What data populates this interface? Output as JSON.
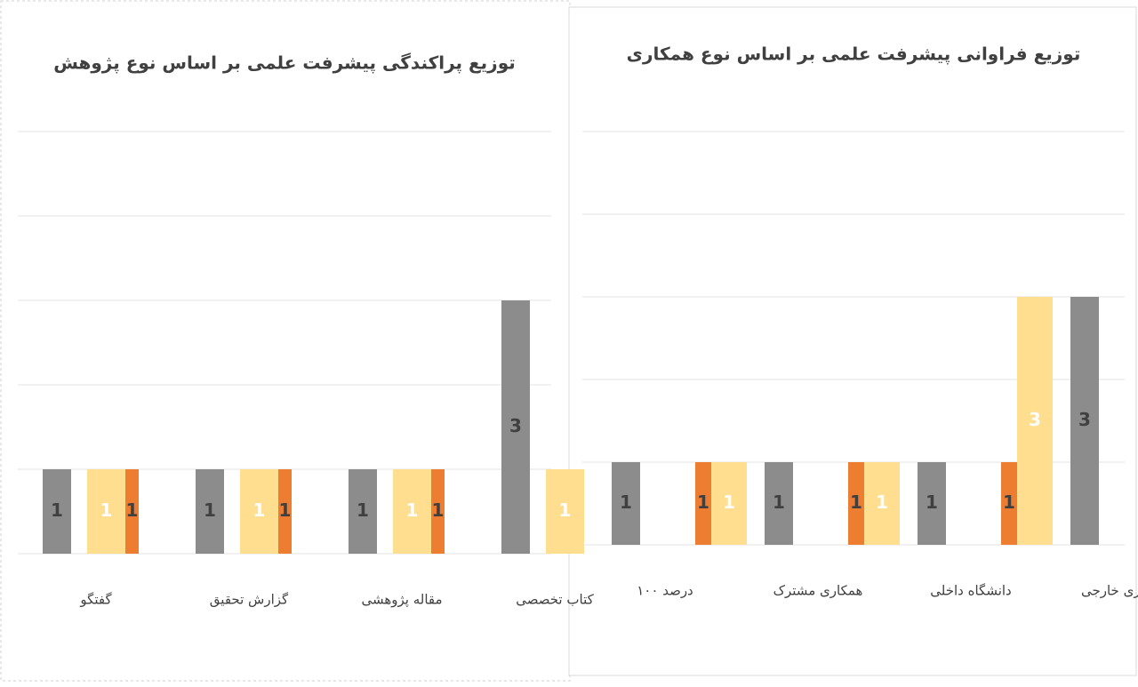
{
  "charts": [
    {
      "chart_data": {
        "type": "bar",
        "title": "توزیع پراکندگی پیشرفت علمی بر اساس نوع پژوهش",
        "categories": [
          "گفتگو",
          "گزارش تحقیق",
          "مقاله پژوهشی",
          "کتاب تخصصی"
        ],
        "series": [
          {
            "name": "grey",
            "color": "#8c8c8c",
            "values": [
              1,
              1,
              1,
              3
            ]
          },
          {
            "name": "yellow",
            "color": "#ffdf8f",
            "values": [
              1,
              1,
              1,
              1
            ]
          },
          {
            "name": "orange",
            "color": "#ed7d31",
            "values": [
              1,
              1,
              1,
              null
            ]
          }
        ],
        "ylim": [
          0,
          5
        ],
        "yticks": [
          0,
          1,
          2,
          3,
          4,
          5
        ],
        "grid": true
      }
    },
    {
      "chart_data": {
        "type": "bar",
        "title": "توزیع فراوانی پیشرفت علمی بر اساس نوع همکاری",
        "categories": [
          "۱۰۰ درصد",
          "همکاری مشترک",
          "دانشگاه داخلی",
          "همکاری خارجی"
        ],
        "series": [
          {
            "name": "grey",
            "color": "#8c8c8c",
            "values": [
              1,
              1,
              1,
              3
            ]
          },
          {
            "name": "orange",
            "color": "#ed7d31",
            "values": [
              1,
              1,
              1,
              null
            ]
          },
          {
            "name": "yellow",
            "color": "#ffdf8f",
            "values": [
              1,
              1,
              3,
              null
            ]
          }
        ],
        "ylim": [
          0,
          5
        ],
        "yticks": [
          0,
          1,
          2,
          3,
          4,
          5
        ],
        "grid": true
      }
    }
  ]
}
